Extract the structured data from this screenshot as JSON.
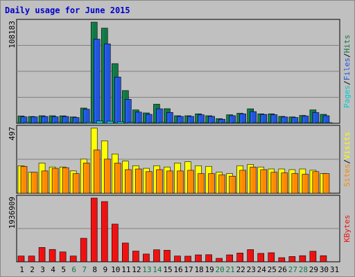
{
  "title": "Daily usage for June 2015",
  "colors": {
    "hits": "#117744",
    "files": "#2255dd",
    "pages": "#00cccc",
    "visits": "#ffff00",
    "sites": "#ff8800",
    "kbytes": "#ee1111",
    "weekend": "#117744",
    "weekday": "#000000",
    "panel": "#c0c0c0",
    "grid": "#808080"
  },
  "chart_data": [
    {
      "type": "bar",
      "title": "Daily usage for June 2015",
      "categories": [
        "1",
        "2",
        "3",
        "4",
        "5",
        "6",
        "7",
        "8",
        "9",
        "10",
        "11",
        "12",
        "13",
        "14",
        "15",
        "16",
        "17",
        "18",
        "19",
        "20",
        "21",
        "22",
        "23",
        "24",
        "25",
        "26",
        "27",
        "28",
        "29",
        "30",
        "31"
      ],
      "weekend_days": [
        "6",
        "7",
        "13",
        "14",
        "20",
        "21",
        "27",
        "28"
      ],
      "ymax_label": "108183",
      "ylim": [
        0,
        108183
      ],
      "legend": [
        {
          "text": "Hits",
          "color_key": "hits"
        },
        {
          "text": "/",
          "color_key": "weekday"
        },
        {
          "text": "Files",
          "color_key": "files"
        },
        {
          "text": "/",
          "color_key": "weekday"
        },
        {
          "text": "Pages",
          "color_key": "pages"
        }
      ],
      "series": [
        {
          "name": "Hits",
          "values": [
            7800,
            7300,
            8100,
            8100,
            8000,
            6800,
            16300,
            108183,
            101800,
            63800,
            35000,
            14300,
            11100,
            20400,
            15600,
            8100,
            8100,
            10100,
            8100,
            5000,
            9100,
            10700,
            15500,
            10100,
            10100,
            7400,
            6800,
            8400,
            14300,
            9600,
            0
          ]
        },
        {
          "name": "Files",
          "values": [
            6900,
            6900,
            7300,
            7000,
            7300,
            6200,
            15000,
            90000,
            85000,
            49500,
            25600,
            12000,
            9600,
            15500,
            11600,
            7400,
            7400,
            9100,
            7400,
            4300,
            8200,
            10100,
            12500,
            9500,
            9200,
            6800,
            6200,
            7800,
            11500,
            8100,
            0
          ]
        },
        {
          "name": "Pages",
          "values": [
            900,
            700,
            900,
            900,
            800,
            600,
            1200,
            2400,
            2200,
            1600,
            1000,
            700,
            600,
            900,
            700,
            500,
            500,
            600,
            500,
            300,
            500,
            600,
            700,
            600,
            600,
            400,
            400,
            500,
            700,
            600,
            0
          ]
        }
      ]
    },
    {
      "type": "bar",
      "categories": [
        "1",
        "2",
        "3",
        "4",
        "5",
        "6",
        "7",
        "8",
        "9",
        "10",
        "11",
        "12",
        "13",
        "14",
        "15",
        "16",
        "17",
        "18",
        "19",
        "20",
        "21",
        "22",
        "23",
        "24",
        "25",
        "26",
        "27",
        "28",
        "29",
        "30",
        "31"
      ],
      "ymax_label": "497",
      "ylim": [
        0,
        497
      ],
      "legend": [
        {
          "text": "Visits",
          "color_key": "visits"
        },
        {
          "text": "/",
          "color_key": "weekday"
        },
        {
          "text": "Sites",
          "color_key": "sites"
        }
      ],
      "series": [
        {
          "name": "Visits",
          "values": [
            210,
            160,
            230,
            200,
            200,
            170,
            260,
            497,
            400,
            300,
            245,
            210,
            190,
            210,
            200,
            230,
            240,
            210,
            205,
            160,
            150,
            210,
            220,
            200,
            185,
            185,
            180,
            185,
            175,
            150,
            0
          ]
        },
        {
          "name": "Sites",
          "values": [
            205,
            160,
            170,
            190,
            195,
            150,
            230,
            330,
            260,
            230,
            180,
            185,
            165,
            180,
            170,
            170,
            175,
            150,
            150,
            140,
            130,
            175,
            200,
            180,
            160,
            155,
            150,
            145,
            165,
            150,
            0
          ]
        }
      ]
    },
    {
      "type": "bar",
      "categories": [
        "1",
        "2",
        "3",
        "4",
        "5",
        "6",
        "7",
        "8",
        "9",
        "10",
        "11",
        "12",
        "13",
        "14",
        "15",
        "16",
        "17",
        "18",
        "19",
        "20",
        "21",
        "22",
        "23",
        "24",
        "25",
        "26",
        "27",
        "28",
        "29",
        "30",
        "31"
      ],
      "ymax_label": "1936909",
      "ylim": [
        0,
        1936909
      ],
      "legend": [
        {
          "text": "KBytes",
          "color_key": "kbytes"
        }
      ],
      "series": [
        {
          "name": "KBytes",
          "values": [
            175000,
            175000,
            435000,
            375000,
            300000,
            175000,
            715000,
            1936909,
            1830000,
            1145000,
            570000,
            325000,
            235000,
            365000,
            350000,
            175000,
            170000,
            210000,
            215000,
            105000,
            210000,
            265000,
            370000,
            255000,
            275000,
            125000,
            160000,
            185000,
            320000,
            185000,
            0
          ]
        }
      ]
    }
  ]
}
